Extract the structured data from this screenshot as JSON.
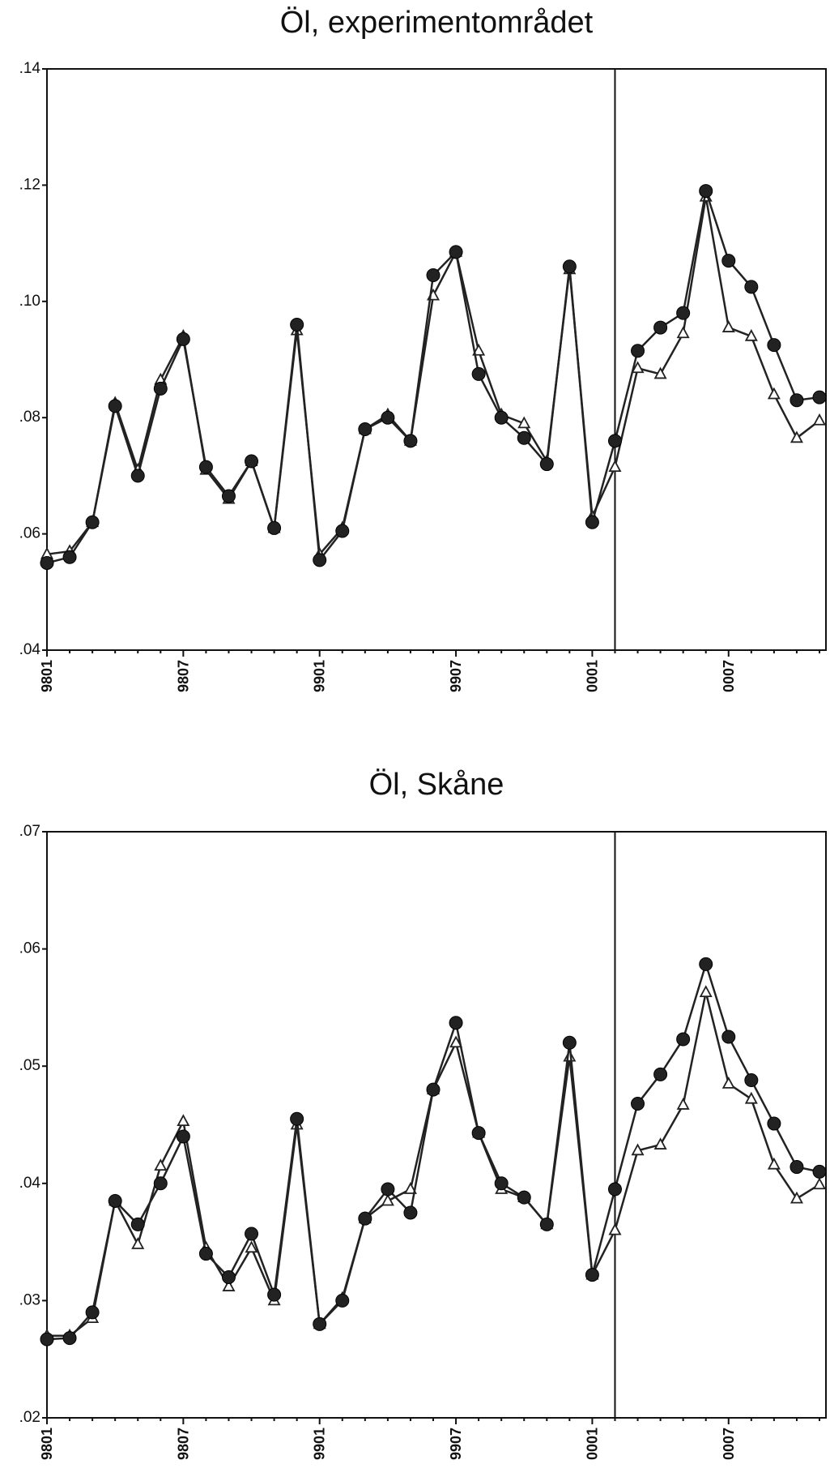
{
  "chart_data": [
    {
      "type": "line",
      "title": "Öl, experimentområdet",
      "categories": [
        "9801",
        null,
        null,
        null,
        null,
        null,
        "9807",
        null,
        null,
        null,
        null,
        null,
        "9901",
        null,
        null,
        null,
        null,
        null,
        "9907",
        null,
        null,
        null,
        null,
        null,
        "0001",
        null,
        null,
        null,
        null,
        null,
        "0007",
        null,
        null,
        null,
        null
      ],
      "series": [
        {
          "color": "#222222",
          "marker": "triangle",
          "values": [
            0.0565,
            0.057,
            0.062,
            0.0825,
            0.071,
            0.0865,
            0.094,
            0.071,
            0.066,
            0.0725,
            0.061,
            0.095,
            0.0565,
            0.061,
            0.078,
            0.0805,
            0.076,
            0.101,
            0.1085,
            0.0915,
            0.0805,
            0.079,
            0.0725,
            0.1055,
            0.063,
            0.0715,
            0.0885,
            0.0875,
            0.0945,
            0.118,
            0.0955,
            0.094,
            0.084,
            0.0765,
            0.0795
          ]
        },
        {
          "color": "#222222",
          "marker": "circle",
          "values": [
            0.055,
            0.056,
            0.062,
            0.082,
            0.07,
            0.085,
            0.0935,
            0.0715,
            0.0665,
            0.0725,
            0.061,
            0.096,
            0.0555,
            0.0605,
            0.078,
            0.08,
            0.076,
            0.1045,
            0.1085,
            0.0875,
            0.08,
            0.0765,
            0.072,
            0.106,
            0.062,
            0.076,
            0.0915,
            0.0955,
            0.098,
            0.119,
            0.107,
            0.1025,
            0.0925,
            0.083,
            0.0835
          ]
        }
      ],
      "ylim": [
        0.04,
        0.14
      ],
      "yticks": [
        {
          "value": 0.04,
          "label": ".04"
        },
        {
          "value": 0.06,
          "label": ".06"
        },
        {
          "value": 0.08,
          "label": ".08"
        },
        {
          "value": 0.1,
          "label": ".10"
        },
        {
          "value": 0.12,
          "label": ".12"
        },
        {
          "value": 0.14,
          "label": ".14"
        }
      ],
      "vertical_line_index": 25
    },
    {
      "type": "line",
      "title": "Öl, Skåne",
      "categories": [
        "9801",
        null,
        null,
        null,
        null,
        null,
        "9807",
        null,
        null,
        null,
        null,
        null,
        "9901",
        null,
        null,
        null,
        null,
        null,
        "9907",
        null,
        null,
        null,
        null,
        null,
        "0001",
        null,
        null,
        null,
        null,
        null,
        "0007",
        null,
        null,
        null,
        null
      ],
      "series": [
        {
          "color": "#222222",
          "marker": "triangle",
          "values": [
            0.027,
            0.027,
            0.0285,
            0.0385,
            0.0348,
            0.0415,
            0.0453,
            0.0345,
            0.0312,
            0.0345,
            0.03,
            0.045,
            0.028,
            0.0302,
            0.037,
            0.0385,
            0.0395,
            0.048,
            0.052,
            0.0443,
            0.0395,
            0.0388,
            0.0365,
            0.0508,
            0.0322,
            0.036,
            0.0428,
            0.0433,
            0.0467,
            0.0563,
            0.0485,
            0.0472,
            0.0416,
            0.0387,
            0.0399
          ]
        },
        {
          "color": "#222222",
          "marker": "circle",
          "values": [
            0.0267,
            0.0268,
            0.029,
            0.0385,
            0.0365,
            0.04,
            0.044,
            0.034,
            0.032,
            0.0357,
            0.0305,
            0.0455,
            0.028,
            0.03,
            0.037,
            0.0395,
            0.0375,
            0.048,
            0.0537,
            0.0443,
            0.04,
            0.0388,
            0.0365,
            0.052,
            0.0322,
            0.0395,
            0.0468,
            0.0493,
            0.0523,
            0.0587,
            0.0525,
            0.0488,
            0.0451,
            0.0414,
            0.041
          ]
        }
      ],
      "ylim": [
        0.02,
        0.07
      ],
      "yticks": [
        {
          "value": 0.02,
          "label": ".02"
        },
        {
          "value": 0.03,
          "label": ".03"
        },
        {
          "value": 0.04,
          "label": ".04"
        },
        {
          "value": 0.05,
          "label": ".05"
        },
        {
          "value": 0.06,
          "label": ".06"
        },
        {
          "value": 0.07,
          "label": ".07"
        }
      ],
      "vertical_line_index": 25
    }
  ]
}
